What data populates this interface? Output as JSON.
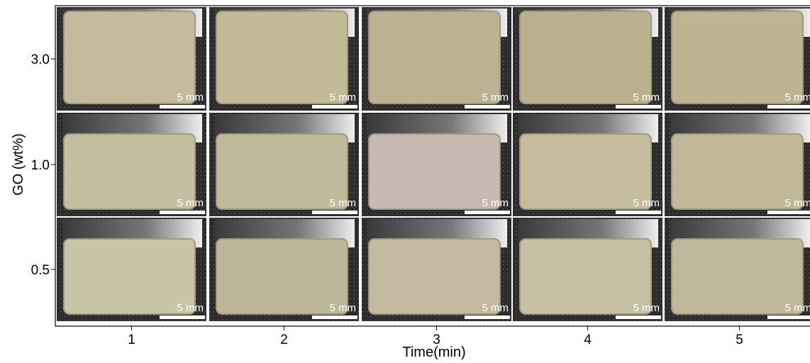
{
  "y_axis": {
    "label": "GO (wt%)",
    "ticks": [
      "3.0",
      "1.0",
      "0.5"
    ]
  },
  "x_axis": {
    "label": "Time(min)",
    "ticks": [
      "1",
      "2",
      "3",
      "4",
      "5"
    ]
  },
  "panels": [
    [
      "5 mm",
      "5 mm",
      "5 mm",
      "5 mm",
      "5 mm"
    ],
    [
      "5 mm",
      "5 mm",
      "5 mm",
      "5 mm",
      "5 mm"
    ],
    [
      "5 mm",
      "5 mm",
      "5 mm",
      "5 mm",
      "5 mm"
    ]
  ]
}
